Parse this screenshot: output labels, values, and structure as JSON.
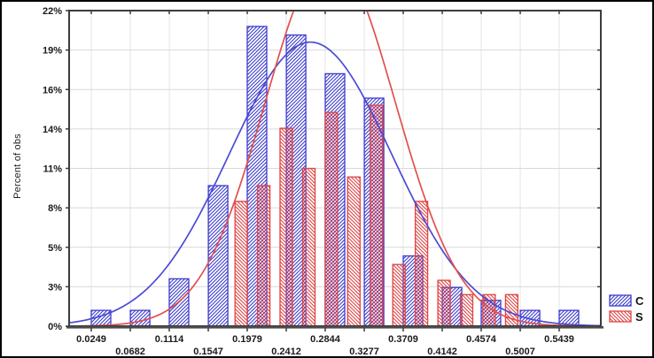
{
  "chart_data": {
    "type": "bar",
    "subtype": "overlaid-histograms-with-normal-fit",
    "title": "",
    "xlabel": "",
    "ylabel": "Percent of obs",
    "ylim": [
      0,
      22
    ],
    "grid": "horizontal-and-vertical-light-gray",
    "legend_position": "bottom-right-outside",
    "x_ticks": [
      {
        "label": "0.0249",
        "value": 0.0249
      },
      {
        "label": "0.0682",
        "value": 0.0682
      },
      {
        "label": "0.1114",
        "value": 0.1114
      },
      {
        "label": "0.1547",
        "value": 0.1547
      },
      {
        "label": "0.1979",
        "value": 0.1979
      },
      {
        "label": "0.2412",
        "value": 0.2412
      },
      {
        "label": "0.2844",
        "value": 0.2844
      },
      {
        "label": "0.3277",
        "value": 0.3277
      },
      {
        "label": "0.3709",
        "value": 0.3709
      },
      {
        "label": "0.4142",
        "value": 0.4142
      },
      {
        "label": "0.4574",
        "value": 0.4574
      },
      {
        "label": "0.5007",
        "value": 0.5007
      },
      {
        "label": "0.5439",
        "value": 0.5439
      }
    ],
    "y_ticks": [
      {
        "label": "0%",
        "value": 0
      },
      {
        "label": "3%",
        "value": 2.75
      },
      {
        "label": "5%",
        "value": 5.5
      },
      {
        "label": "8%",
        "value": 8.25
      },
      {
        "label": "11%",
        "value": 11
      },
      {
        "label": "14%",
        "value": 13.75
      },
      {
        "label": "16%",
        "value": 16.5
      },
      {
        "label": "19%",
        "value": 19.25
      },
      {
        "label": "22%",
        "value": 22
      }
    ],
    "series": [
      {
        "name": "C",
        "color": "#3c3ccd",
        "hatch": "forward-slash",
        "bin_left": [
          0.0249,
          0.0682,
          0.1114,
          0.1547,
          0.1979,
          0.2412,
          0.2844,
          0.3277,
          0.3709,
          0.4142,
          0.4574,
          0.5007,
          0.5439
        ],
        "bin_width": 0.02165,
        "values": [
          1.1,
          1.1,
          3.3,
          9.8,
          20.9,
          20.3,
          17.6,
          15.9,
          4.9,
          2.7,
          1.8,
          1.1,
          1.1
        ]
      },
      {
        "name": "S",
        "color": "#e04343",
        "hatch": "back-slash",
        "bin_left": [
          0.1843,
          0.2093,
          0.2343,
          0.2593,
          0.2843,
          0.3093,
          0.3343,
          0.3593,
          0.3843,
          0.4093,
          0.4343,
          0.4593,
          0.4843
        ],
        "bin_width": 0.01378,
        "values": [
          8.7,
          9.8,
          13.8,
          11.0,
          14.9,
          10.4,
          15.4,
          4.3,
          8.7,
          3.2,
          2.2,
          2.2,
          2.2
        ]
      }
    ],
    "fit_curves": [
      {
        "series": "C",
        "type": "normal",
        "mean": 0.268,
        "sd": 0.09,
        "peak_percent": 19.8,
        "color": "#4b4bd6"
      },
      {
        "series": "S",
        "type": "normal",
        "mean": 0.29,
        "sd": 0.072,
        "peak_percent": 25.8,
        "color": "#e34f4f"
      }
    ],
    "colors": {
      "plot_border": "#3c3c3c",
      "bottom_axis": "#4a4a4a",
      "h_gridline": "#d9d9d9",
      "v_gridline": "#e4e4e4",
      "tick": "#3c3c3c",
      "tick_text": "#1a1a1a"
    }
  }
}
